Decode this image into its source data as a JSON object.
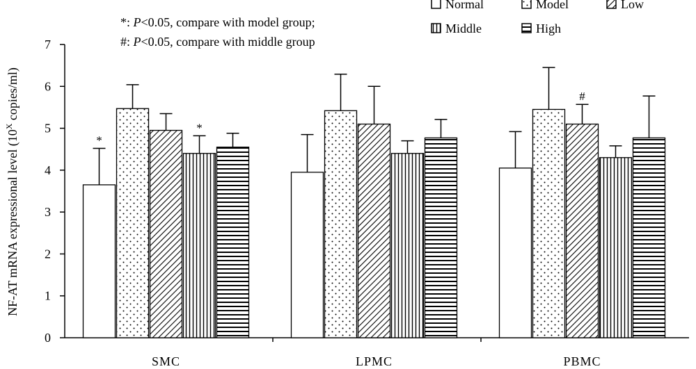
{
  "annotations": {
    "note1_prefix": "*: ",
    "note1_p": "P",
    "note1_rest": "<0.05, compare with model group;",
    "note2_prefix": "#: ",
    "note2_p": "P",
    "note2_rest": "<0.05, compare with middle group"
  },
  "chart_data": {
    "type": "bar",
    "ylabel_main": "NF-AT mRNA expressional level (10",
    "ylabel_sup": "X",
    "ylabel_end": " copies/ml)",
    "xlabel": "",
    "ylim": [
      0,
      7
    ],
    "yticks": [
      "0",
      "1",
      "2",
      "3",
      "4",
      "5",
      "6",
      "7"
    ],
    "categories": [
      "SMC",
      "LPMC",
      "PBMC"
    ],
    "legend_position": "top-right",
    "series": [
      {
        "name": "Normal",
        "pattern": "blank",
        "values": [
          3.65,
          3.95,
          4.05
        ],
        "errors": [
          0.87,
          0.9,
          0.87
        ],
        "marks": [
          "*",
          "",
          ""
        ]
      },
      {
        "name": "Model",
        "pattern": "dots",
        "values": [
          5.47,
          5.42,
          5.45
        ],
        "errors": [
          0.57,
          0.87,
          1.0
        ],
        "marks": [
          "",
          "",
          ""
        ]
      },
      {
        "name": "Low",
        "pattern": "diagonal",
        "values": [
          4.95,
          5.1,
          5.1
        ],
        "errors": [
          0.4,
          0.9,
          0.47
        ],
        "marks": [
          "",
          "",
          "#"
        ]
      },
      {
        "name": "Middle",
        "pattern": "vertical",
        "values": [
          4.4,
          4.4,
          4.3
        ],
        "errors": [
          0.42,
          0.3,
          0.28
        ],
        "marks": [
          "*",
          "",
          ""
        ]
      },
      {
        "name": "High",
        "pattern": "horizontal",
        "values": [
          4.55,
          4.77,
          4.77
        ],
        "errors": [
          0.33,
          0.44,
          1.0
        ],
        "marks": [
          "",
          "",
          ""
        ]
      }
    ]
  }
}
